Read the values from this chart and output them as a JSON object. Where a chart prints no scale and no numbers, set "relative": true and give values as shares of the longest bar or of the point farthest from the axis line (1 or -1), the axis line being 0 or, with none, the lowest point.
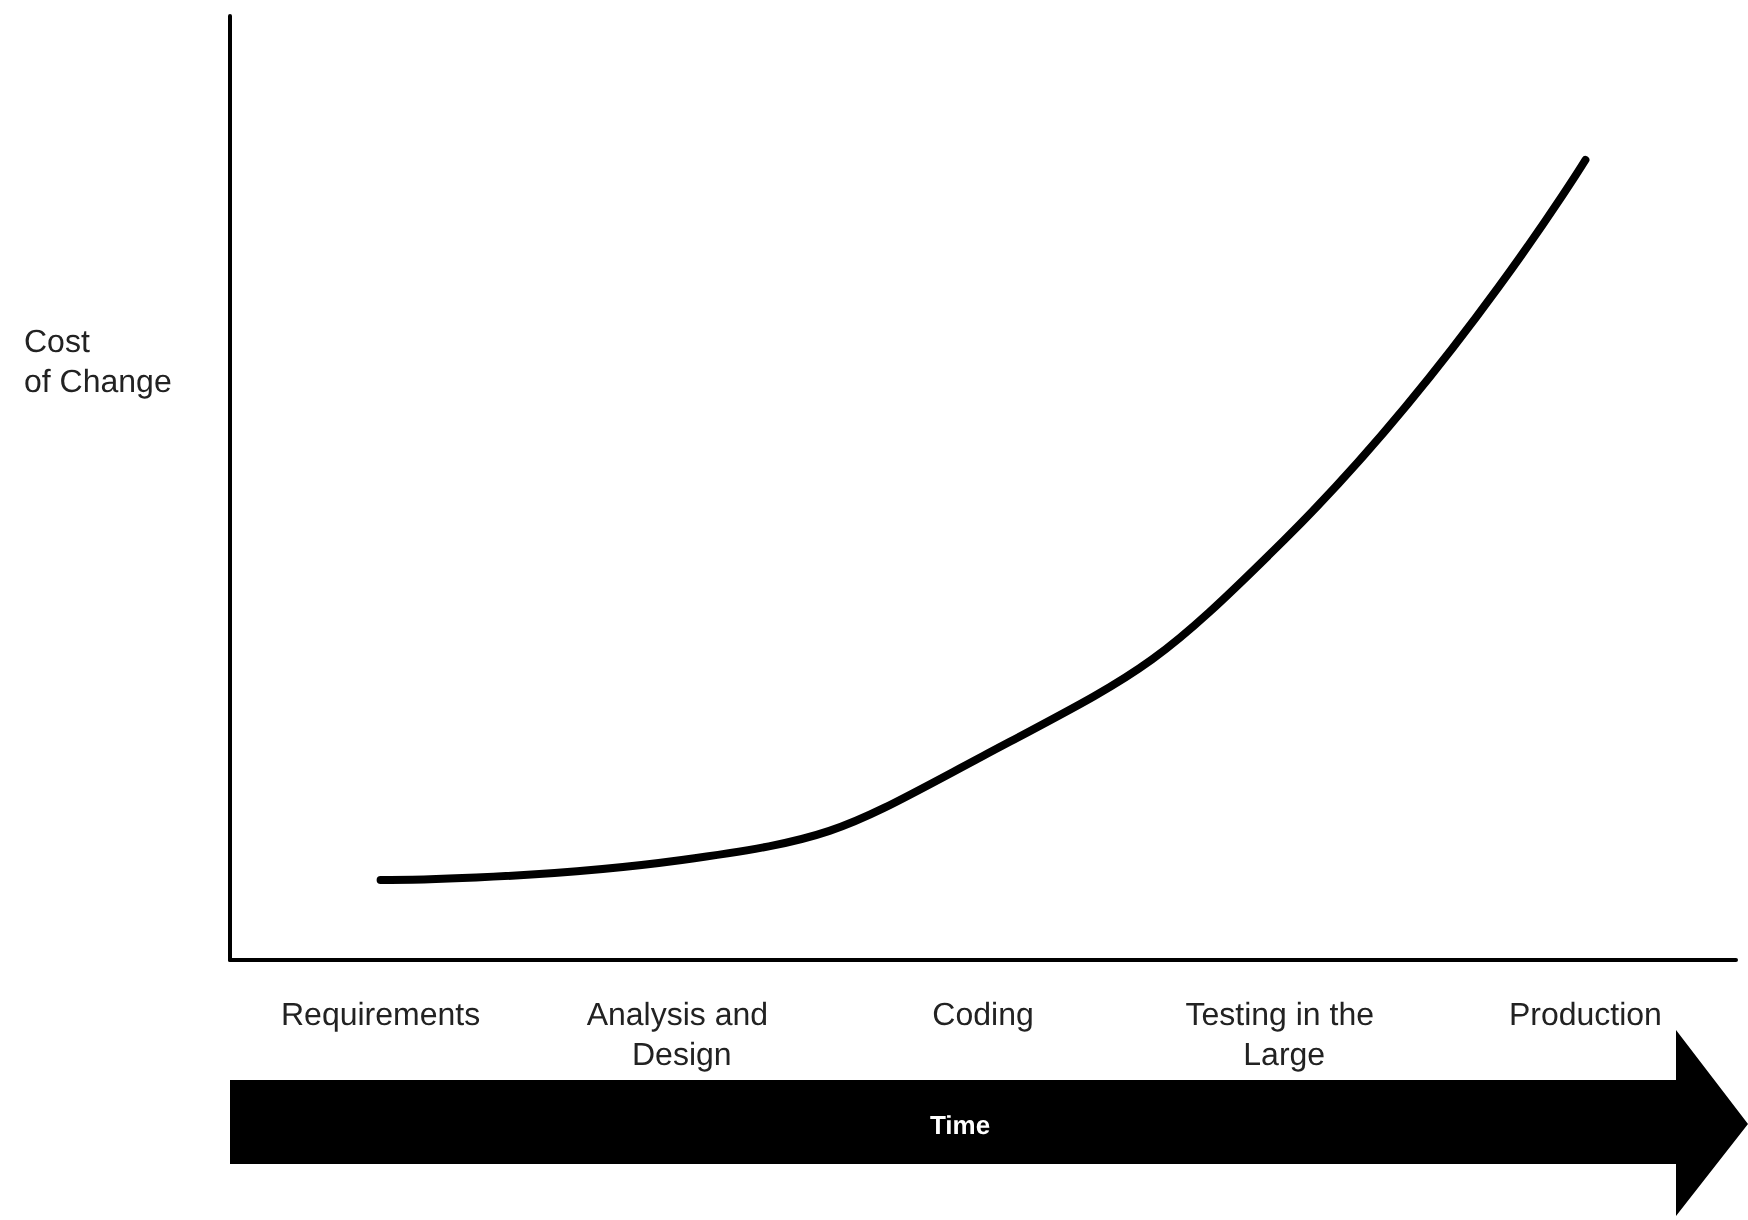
{
  "chart_data": {
    "type": "line",
    "relative": true,
    "ylabel": "Cost\nof Change",
    "xlabel": "Time",
    "categories": [
      "Requirements",
      "Analysis and Design",
      "Coding",
      "Testing in the Large",
      "Production"
    ],
    "series": [
      {
        "color": "#000000",
        "values": [
          0.1,
          0.125,
          0.255,
          0.525,
          1
        ]
      }
    ],
    "grid": false,
    "marker": "none",
    "line_style": "solid"
  }
}
